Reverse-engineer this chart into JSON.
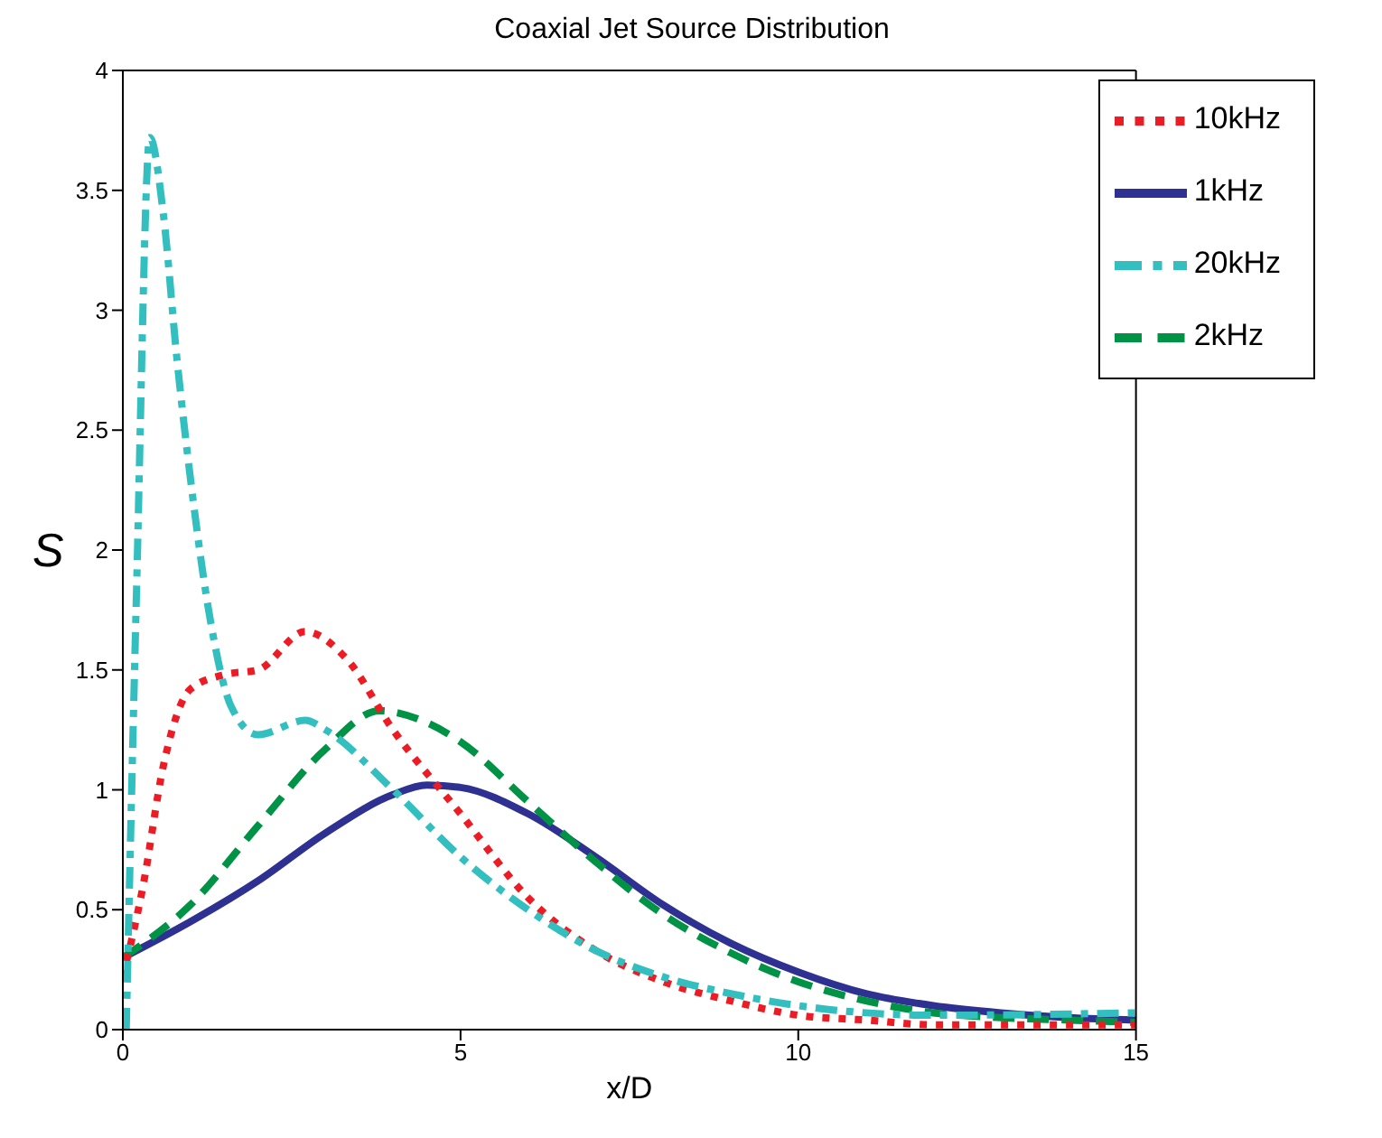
{
  "chart_data": {
    "type": "line",
    "title": "Coaxial Jet Source Distribution",
    "xlabel": "x/D",
    "ylabel": "S",
    "xlim": [
      0,
      15
    ],
    "xticks": [
      0,
      5,
      10,
      15
    ],
    "ylim": [
      0,
      4
    ],
    "yticks": [
      0,
      0.5,
      1,
      1.5,
      2,
      2.5,
      3,
      3.5,
      4
    ],
    "grid": false,
    "legend": "top right",
    "marker": "none",
    "series": [
      {
        "name": "1kHz",
        "color": "#2e3192",
        "line_style": "solid",
        "x": [
          0,
          1,
          2,
          3,
          4,
          4.5,
          5,
          6,
          7,
          8,
          9,
          10,
          11,
          12,
          13,
          14,
          15
        ],
        "values": [
          0.3,
          0.45,
          0.62,
          0.82,
          0.98,
          1.02,
          1.01,
          0.9,
          0.72,
          0.52,
          0.36,
          0.24,
          0.15,
          0.1,
          0.07,
          0.05,
          0.04
        ]
      },
      {
        "name": "2kHz",
        "color": "#009245",
        "line_style": "dashed",
        "x": [
          0,
          1,
          2,
          3,
          3.8,
          4.5,
          5,
          6,
          7,
          8,
          9,
          10,
          11,
          12,
          13,
          14,
          15
        ],
        "values": [
          0.3,
          0.52,
          0.85,
          1.17,
          1.33,
          1.28,
          1.2,
          0.95,
          0.7,
          0.48,
          0.32,
          0.2,
          0.12,
          0.07,
          0.05,
          0.04,
          0.03
        ]
      },
      {
        "name": "10kHz",
        "color": "#ed1c24",
        "line_style": "dotted",
        "x": [
          0,
          0.3,
          0.6,
          1,
          1.5,
          2,
          2.7,
          3.3,
          4,
          5,
          6,
          7,
          8,
          9,
          10,
          11,
          12,
          13,
          15
        ],
        "values": [
          0.22,
          0.6,
          1.1,
          1.42,
          1.48,
          1.5,
          1.66,
          1.55,
          1.25,
          0.9,
          0.55,
          0.33,
          0.2,
          0.12,
          0.06,
          0.04,
          0.02,
          0.02,
          0.02
        ]
      },
      {
        "name": "20kHz",
        "color": "#33bfbf",
        "line_style": "dashdot",
        "x": [
          0.05,
          0.2,
          0.4,
          0.6,
          0.8,
          1,
          1.3,
          1.6,
          2,
          2.7,
          3,
          4,
          5,
          6,
          7,
          8,
          9,
          10,
          12,
          15
        ],
        "values": [
          0,
          1.8,
          3.72,
          3.4,
          2.8,
          2.3,
          1.7,
          1.35,
          1.23,
          1.29,
          1.25,
          1,
          0.72,
          0.5,
          0.33,
          0.22,
          0.15,
          0.1,
          0.06,
          0.07
        ]
      }
    ]
  }
}
